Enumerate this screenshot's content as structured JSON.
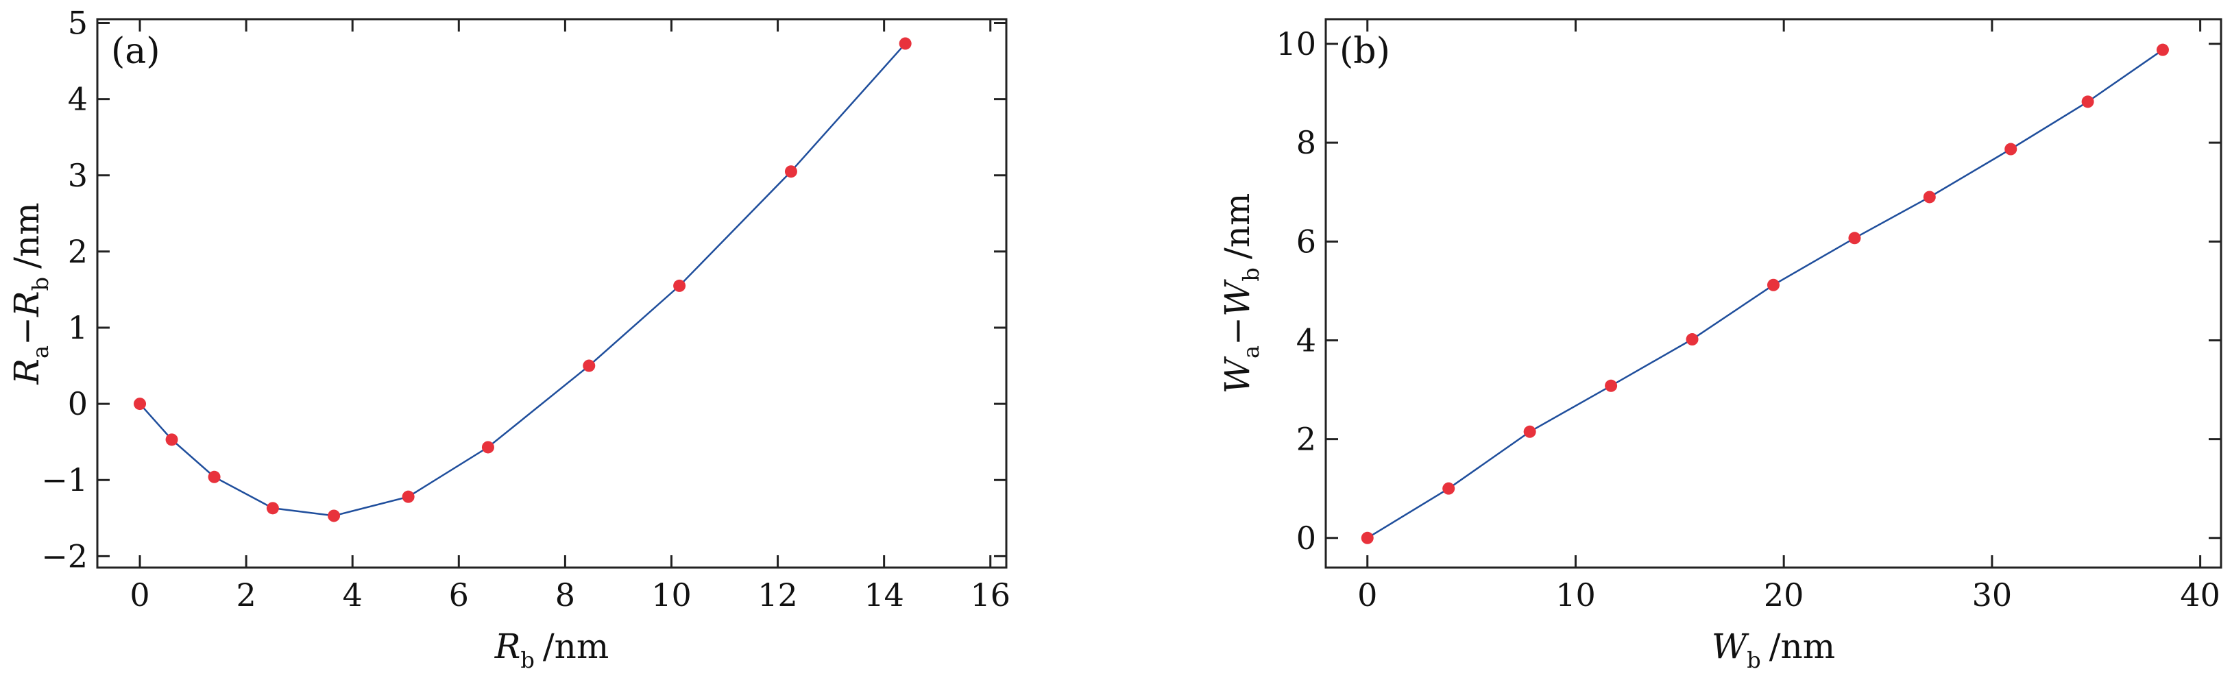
{
  "colors": {
    "line": "#1f4e9c",
    "marker": "#e8323c",
    "axis": "#222222"
  },
  "chart_data": [
    {
      "type": "line",
      "panel_tag": "(a)",
      "xlabel": {
        "var": "R",
        "sub": "b",
        "unit": "/nm"
      },
      "ylabel": {
        "a": "R",
        "a_sub": "a",
        "minus": "−",
        "b": "R",
        "b_sub": "b",
        "unit": "/nm"
      },
      "xlim": [
        -0.8,
        16.3
      ],
      "ylim": [
        -2.15,
        5.05
      ],
      "xticks": [
        0,
        2,
        4,
        6,
        8,
        10,
        12,
        14,
        16
      ],
      "xtick_labels": [
        "0",
        "2",
        "4",
        "6",
        "8",
        "10",
        "12",
        "14",
        "16"
      ],
      "yticks": [
        -2,
        -1,
        0,
        1,
        2,
        3,
        4,
        5
      ],
      "ytick_labels": [
        "−2",
        "−1",
        "0",
        "1",
        "2",
        "3",
        "4",
        "5"
      ],
      "grid": false,
      "series": [
        {
          "x": [
            0,
            0.6,
            1.4,
            2.5,
            3.65,
            5.05,
            6.55,
            8.45,
            10.15,
            12.25,
            14.4
          ],
          "y": [
            0,
            -0.47,
            -0.96,
            -1.37,
            -1.47,
            -1.22,
            -0.57,
            0.5,
            1.55,
            3.05,
            4.73
          ]
        }
      ]
    },
    {
      "type": "line",
      "panel_tag": "(b)",
      "xlabel": {
        "var": "W",
        "sub": "b",
        "unit": "/nm"
      },
      "ylabel": {
        "a": "W",
        "a_sub": "a",
        "minus": "−",
        "b": "W",
        "b_sub": "b",
        "unit": "/nm"
      },
      "xlim": [
        -2,
        41
      ],
      "ylim": [
        -0.6,
        10.5
      ],
      "xticks": [
        0,
        10,
        20,
        30,
        40
      ],
      "xtick_labels": [
        "0",
        "10",
        "20",
        "30",
        "40"
      ],
      "yticks": [
        0,
        2,
        4,
        6,
        8,
        10
      ],
      "ytick_labels": [
        "0",
        "2",
        "4",
        "6",
        "8",
        "10"
      ],
      "grid": false,
      "series": [
        {
          "x": [
            0,
            3.9,
            7.8,
            11.7,
            15.6,
            19.5,
            23.4,
            27.0,
            30.9,
            34.6,
            38.2
          ],
          "y": [
            0,
            1.0,
            2.15,
            3.08,
            4.02,
            5.12,
            6.07,
            6.9,
            7.87,
            8.83,
            9.88
          ]
        }
      ]
    }
  ]
}
